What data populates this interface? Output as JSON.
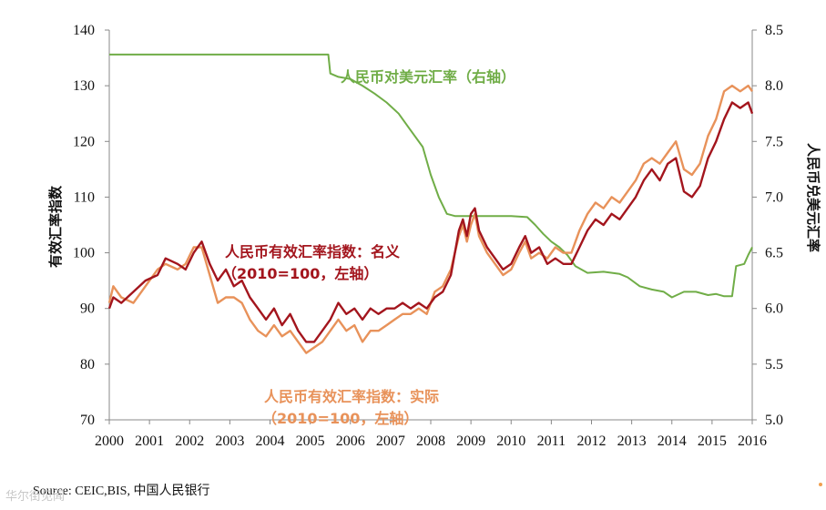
{
  "chart_data": {
    "type": "line",
    "x_categories": [
      "2000",
      "2001",
      "2002",
      "2003",
      "2004",
      "2005",
      "2006",
      "2007",
      "2008",
      "2009",
      "2010",
      "2011",
      "2012",
      "2013",
      "2014",
      "2015",
      "2016"
    ],
    "left_axis": {
      "title": "有效汇率指数",
      "range": [
        70,
        140
      ],
      "ticks": [
        "70",
        "80",
        "90",
        "100",
        "110",
        "120",
        "130",
        "140"
      ]
    },
    "right_axis": {
      "title": "人民币兑美元汇率",
      "range": [
        5.0,
        8.5
      ],
      "ticks": [
        "5.0",
        "5.5",
        "6.0",
        "6.5",
        "7.0",
        "7.5",
        "8.0",
        "8.5"
      ]
    },
    "series": [
      {
        "name": "nominal",
        "label_line1": "人民币有效汇率指数：名义",
        "label_line2": "（2010=100，左轴）",
        "axis": "left",
        "color": "#a3151d",
        "points": [
          [
            2000.0,
            90
          ],
          [
            2000.1,
            92
          ],
          [
            2000.3,
            91
          ],
          [
            2000.6,
            93
          ],
          [
            2000.9,
            95
          ],
          [
            2001.2,
            96
          ],
          [
            2001.4,
            99
          ],
          [
            2001.7,
            98
          ],
          [
            2001.9,
            97
          ],
          [
            2002.1,
            100
          ],
          [
            2002.3,
            102
          ],
          [
            2002.5,
            98
          ],
          [
            2002.7,
            95
          ],
          [
            2002.9,
            97
          ],
          [
            2003.1,
            94
          ],
          [
            2003.3,
            95
          ],
          [
            2003.5,
            92
          ],
          [
            2003.7,
            90
          ],
          [
            2003.9,
            88
          ],
          [
            2004.1,
            90
          ],
          [
            2004.3,
            87
          ],
          [
            2004.5,
            89
          ],
          [
            2004.7,
            86
          ],
          [
            2004.9,
            84
          ],
          [
            2005.1,
            84
          ],
          [
            2005.3,
            86
          ],
          [
            2005.5,
            88
          ],
          [
            2005.7,
            91
          ],
          [
            2005.9,
            89
          ],
          [
            2006.1,
            90
          ],
          [
            2006.3,
            88
          ],
          [
            2006.5,
            90
          ],
          [
            2006.7,
            89
          ],
          [
            2006.9,
            90
          ],
          [
            2007.1,
            90
          ],
          [
            2007.3,
            91
          ],
          [
            2007.5,
            90
          ],
          [
            2007.7,
            91
          ],
          [
            2007.9,
            90
          ],
          [
            2008.1,
            92
          ],
          [
            2008.3,
            93
          ],
          [
            2008.5,
            96
          ],
          [
            2008.7,
            104
          ],
          [
            2008.8,
            106
          ],
          [
            2008.9,
            103
          ],
          [
            2009.0,
            107
          ],
          [
            2009.1,
            108
          ],
          [
            2009.2,
            104
          ],
          [
            2009.4,
            101
          ],
          [
            2009.6,
            99
          ],
          [
            2009.8,
            97
          ],
          [
            2010.0,
            98
          ],
          [
            2010.2,
            101
          ],
          [
            2010.35,
            103
          ],
          [
            2010.5,
            100
          ],
          [
            2010.7,
            101
          ],
          [
            2010.9,
            98
          ],
          [
            2011.1,
            99
          ],
          [
            2011.3,
            98
          ],
          [
            2011.5,
            98
          ],
          [
            2011.7,
            101
          ],
          [
            2011.9,
            104
          ],
          [
            2012.1,
            106
          ],
          [
            2012.3,
            105
          ],
          [
            2012.5,
            107
          ],
          [
            2012.7,
            106
          ],
          [
            2012.9,
            108
          ],
          [
            2013.1,
            110
          ],
          [
            2013.3,
            113
          ],
          [
            2013.5,
            115
          ],
          [
            2013.7,
            113
          ],
          [
            2013.9,
            116
          ],
          [
            2014.1,
            117
          ],
          [
            2014.3,
            111
          ],
          [
            2014.5,
            110
          ],
          [
            2014.7,
            112
          ],
          [
            2014.9,
            117
          ],
          [
            2015.1,
            120
          ],
          [
            2015.3,
            124
          ],
          [
            2015.5,
            127
          ],
          [
            2015.7,
            126
          ],
          [
            2015.9,
            127
          ],
          [
            2016.0,
            125
          ]
        ]
      },
      {
        "name": "real",
        "label_line1": "人民币有效汇率指数：实际",
        "label_line2": "（2010=100，左轴）",
        "axis": "left",
        "color": "#e8925a",
        "points": [
          [
            2000.0,
            91
          ],
          [
            2000.1,
            94
          ],
          [
            2000.3,
            92
          ],
          [
            2000.6,
            91
          ],
          [
            2000.9,
            94
          ],
          [
            2001.2,
            97
          ],
          [
            2001.4,
            98
          ],
          [
            2001.7,
            97
          ],
          [
            2001.9,
            98
          ],
          [
            2002.1,
            101
          ],
          [
            2002.3,
            101
          ],
          [
            2002.5,
            96
          ],
          [
            2002.7,
            91
          ],
          [
            2002.9,
            92
          ],
          [
            2003.1,
            92
          ],
          [
            2003.3,
            91
          ],
          [
            2003.5,
            88
          ],
          [
            2003.7,
            86
          ],
          [
            2003.9,
            85
          ],
          [
            2004.1,
            87
          ],
          [
            2004.3,
            85
          ],
          [
            2004.5,
            86
          ],
          [
            2004.7,
            84
          ],
          [
            2004.9,
            82
          ],
          [
            2005.1,
            83
          ],
          [
            2005.3,
            84
          ],
          [
            2005.5,
            86
          ],
          [
            2005.7,
            88
          ],
          [
            2005.9,
            86
          ],
          [
            2006.1,
            87
          ],
          [
            2006.3,
            84
          ],
          [
            2006.5,
            86
          ],
          [
            2006.7,
            86
          ],
          [
            2006.9,
            87
          ],
          [
            2007.1,
            88
          ],
          [
            2007.3,
            89
          ],
          [
            2007.5,
            89
          ],
          [
            2007.7,
            90
          ],
          [
            2007.9,
            89
          ],
          [
            2008.1,
            93
          ],
          [
            2008.3,
            94
          ],
          [
            2008.5,
            97
          ],
          [
            2008.7,
            103
          ],
          [
            2008.8,
            105
          ],
          [
            2008.9,
            102
          ],
          [
            2009.0,
            105
          ],
          [
            2009.1,
            107
          ],
          [
            2009.2,
            103
          ],
          [
            2009.4,
            100
          ],
          [
            2009.6,
            98
          ],
          [
            2009.8,
            96
          ],
          [
            2010.0,
            97
          ],
          [
            2010.2,
            100
          ],
          [
            2010.35,
            102
          ],
          [
            2010.5,
            99
          ],
          [
            2010.7,
            100
          ],
          [
            2010.9,
            99
          ],
          [
            2011.1,
            101
          ],
          [
            2011.3,
            100
          ],
          [
            2011.5,
            100
          ],
          [
            2011.7,
            104
          ],
          [
            2011.9,
            107
          ],
          [
            2012.1,
            109
          ],
          [
            2012.3,
            108
          ],
          [
            2012.5,
            110
          ],
          [
            2012.7,
            109
          ],
          [
            2012.9,
            111
          ],
          [
            2013.1,
            113
          ],
          [
            2013.3,
            116
          ],
          [
            2013.5,
            117
          ],
          [
            2013.7,
            116
          ],
          [
            2013.9,
            118
          ],
          [
            2014.1,
            120
          ],
          [
            2014.3,
            115
          ],
          [
            2014.5,
            114
          ],
          [
            2014.7,
            116
          ],
          [
            2014.9,
            121
          ],
          [
            2015.1,
            124
          ],
          [
            2015.3,
            129
          ],
          [
            2015.5,
            130
          ],
          [
            2015.7,
            129
          ],
          [
            2015.9,
            130
          ],
          [
            2016.0,
            129
          ]
        ]
      },
      {
        "name": "usd",
        "label": "人民币对美元汇率（右轴）",
        "axis": "right",
        "color": "#70ad47",
        "points": [
          [
            2000.0,
            8.28
          ],
          [
            2005.45,
            8.28
          ],
          [
            2005.5,
            8.11
          ],
          [
            2005.7,
            8.08
          ],
          [
            2006.0,
            8.06
          ],
          [
            2006.3,
            8.0
          ],
          [
            2006.6,
            7.93
          ],
          [
            2006.9,
            7.85
          ],
          [
            2007.2,
            7.75
          ],
          [
            2007.5,
            7.6
          ],
          [
            2007.8,
            7.45
          ],
          [
            2008.0,
            7.2
          ],
          [
            2008.2,
            7.0
          ],
          [
            2008.4,
            6.85
          ],
          [
            2008.6,
            6.83
          ],
          [
            2009.0,
            6.83
          ],
          [
            2009.5,
            6.83
          ],
          [
            2010.0,
            6.83
          ],
          [
            2010.4,
            6.82
          ],
          [
            2010.6,
            6.75
          ],
          [
            2010.8,
            6.67
          ],
          [
            2011.0,
            6.6
          ],
          [
            2011.2,
            6.55
          ],
          [
            2011.4,
            6.48
          ],
          [
            2011.6,
            6.38
          ],
          [
            2011.9,
            6.32
          ],
          [
            2012.3,
            6.33
          ],
          [
            2012.7,
            6.31
          ],
          [
            2012.9,
            6.28
          ],
          [
            2013.2,
            6.2
          ],
          [
            2013.5,
            6.17
          ],
          [
            2013.8,
            6.15
          ],
          [
            2014.0,
            6.1
          ],
          [
            2014.3,
            6.15
          ],
          [
            2014.6,
            6.15
          ],
          [
            2014.9,
            6.12
          ],
          [
            2015.1,
            6.13
          ],
          [
            2015.3,
            6.11
          ],
          [
            2015.5,
            6.11
          ],
          [
            2015.6,
            6.38
          ],
          [
            2015.8,
            6.4
          ],
          [
            2015.9,
            6.48
          ],
          [
            2016.0,
            6.55
          ]
        ]
      }
    ]
  },
  "source": {
    "prefix": "Source: ",
    "text": "CEIC,BIS, 中国人民银行"
  },
  "watermark": "华尔街见闻"
}
